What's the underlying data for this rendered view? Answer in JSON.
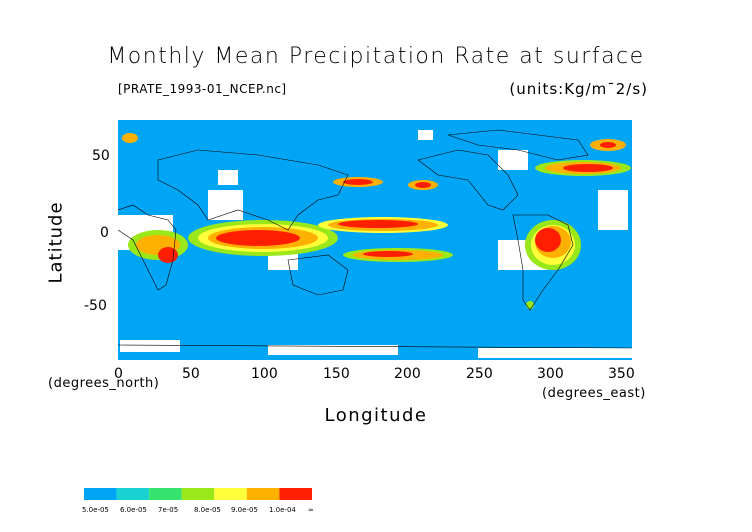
{
  "title": "Monthly Mean Precipitation Rate at surface",
  "source_file": "[PRATE_1993-01_NCEP.nc]",
  "units": "(units:Kg/m¯2/s)",
  "xlabel": "Longitude",
  "ylabel": "Latitude",
  "x_units": "(degrees_east)",
  "y_units": "(degrees_north)",
  "x_ticks": [
    "0",
    "50",
    "100",
    "150",
    "200",
    "250",
    "300",
    "350"
  ],
  "y_ticks": [
    "50",
    "0",
    "-50"
  ],
  "colors": {
    "ocean_bg": "#00a6f5",
    "no_data": "#ffffff",
    "coast": "#000000"
  },
  "legend": {
    "labels": [
      "5.0e-05",
      "6.0e-05",
      "7e-05",
      "8.0e-05",
      "9.0e-05",
      "1.0e-04",
      "∞"
    ],
    "colors": [
      "#00a6f5",
      "#1ad2d2",
      "#36e36e",
      "#9ae81a",
      "#ffff3a",
      "#ffb000",
      "#ff1f00"
    ]
  },
  "map": {
    "lon_range": [
      0,
      360
    ],
    "lat_range": [
      -90,
      90
    ],
    "features": [
      {
        "type": "heavy-rain",
        "name": "Indian Ocean / Maritime Continent band"
      },
      {
        "type": "heavy-rain",
        "name": "Central Pacific convergence band"
      },
      {
        "type": "heavy-rain",
        "name": "South America Amazon"
      },
      {
        "type": "heavy-rain",
        "name": "North Pacific storm track"
      },
      {
        "type": "heavy-rain",
        "name": "North Atlantic storm track"
      }
    ]
  }
}
